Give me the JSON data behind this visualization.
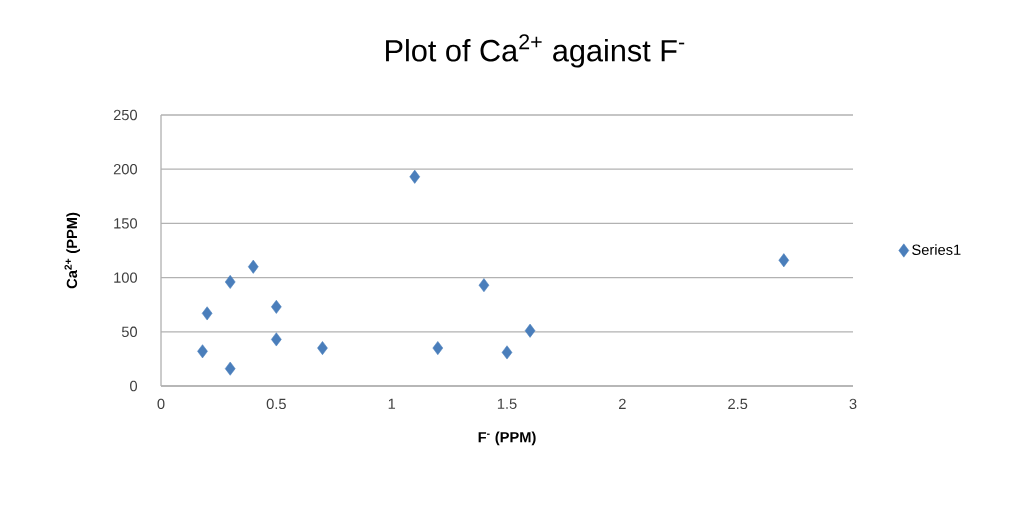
{
  "chart_data": {
    "type": "scatter",
    "title": "Plot of Ca$^{2+}$ against F$^{-}$",
    "xlabel": "F$^{-}$ (PPM)",
    "ylabel": "Ca$^{2+}$ (PPM)",
    "series": [
      {
        "name": "Series1",
        "color": "#4a7ebb",
        "x": [
          0.18,
          0.3,
          0.2,
          0.3,
          0.4,
          0.5,
          0.5,
          0.7,
          1.1,
          1.2,
          1.4,
          1.5,
          1.6,
          2.7
        ],
        "values": [
          32,
          16,
          67,
          96,
          110,
          73,
          43,
          35,
          193,
          35,
          93,
          31,
          51,
          116
        ]
      }
    ],
    "xlim": [
      0,
      3
    ],
    "ylim": [
      0,
      250
    ],
    "xticks": [
      0,
      0.5,
      1,
      1.5,
      2,
      2.5,
      3
    ],
    "yticks": [
      0,
      50,
      100,
      150,
      200,
      250
    ],
    "grid": "y",
    "legend": "right",
    "marker": "diamond"
  }
}
